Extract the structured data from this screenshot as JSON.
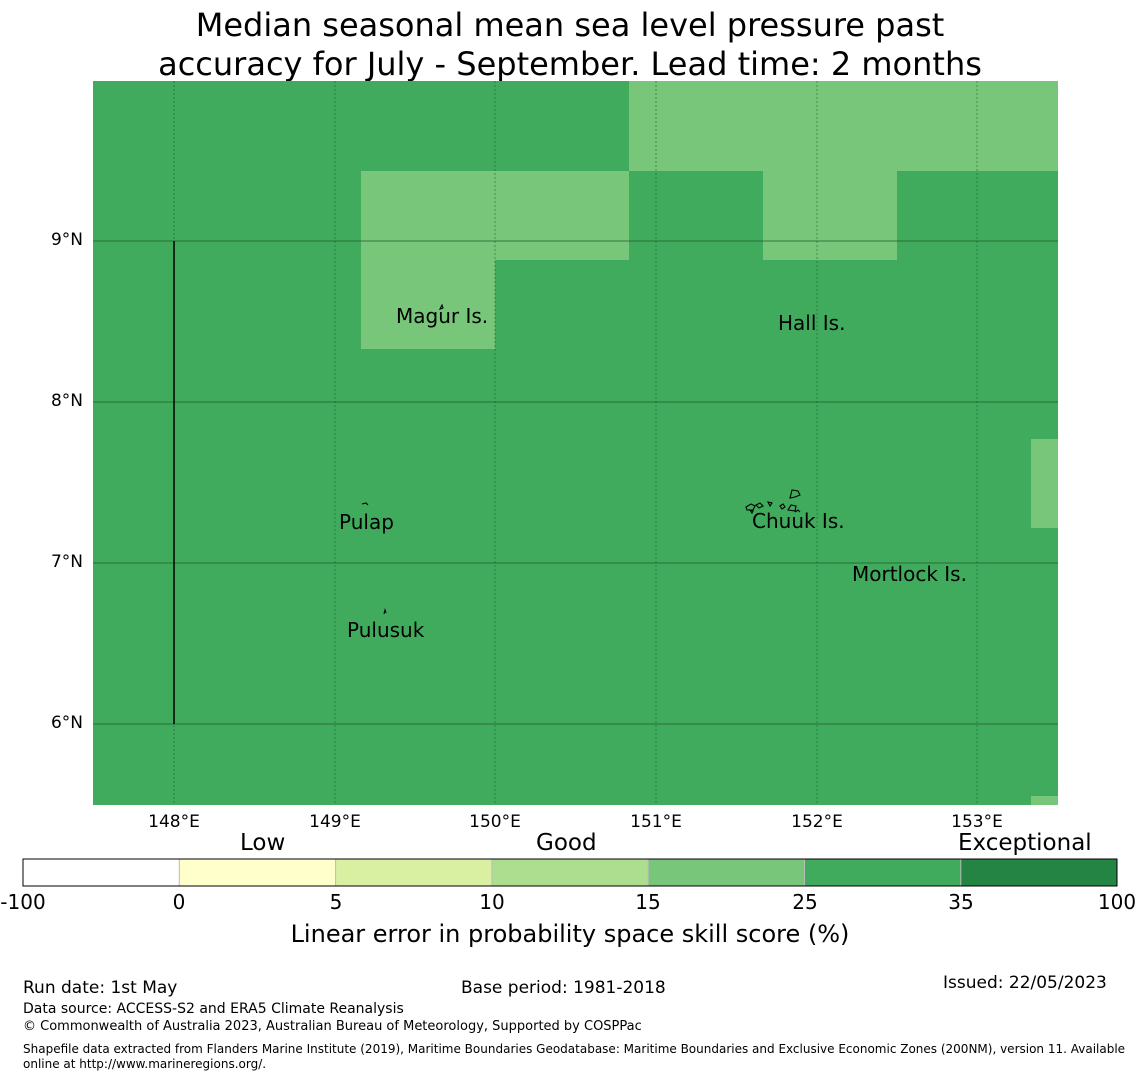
{
  "title": {
    "line1": "Median seasonal mean sea level pressure past",
    "line2": "accuracy for July - September. Lead time: 2 months"
  },
  "map": {
    "lat_labels": [
      "9°N",
      "8°N",
      "7°N",
      "6°N"
    ],
    "lon_labels": [
      "148°E",
      "149°E",
      "150°E",
      "151°E",
      "152°E",
      "153°E"
    ],
    "places": [
      "Magur Is.",
      "Hall Is.",
      "Pulap",
      "Chuuk Is.",
      "Mortlock Is.",
      "Pulusuk"
    ],
    "colors": {
      "good_25_35": "#41ab5d",
      "good_15_25": "#78c679",
      "grid": "#1e5a2e"
    }
  },
  "colorbar": {
    "categories": [
      "Low",
      "Good",
      "Exceptional"
    ],
    "ticks": [
      "-100",
      "0",
      "5",
      "10",
      "15",
      "25",
      "35",
      "100"
    ],
    "colors": [
      "#ffffff",
      "#ffffcc",
      "#d9f0a3",
      "#addd8e",
      "#78c679",
      "#41ab5d",
      "#238443"
    ],
    "label": "Linear error in probability space skill score (%)"
  },
  "footer": {
    "run_date": "Run date: 1st May",
    "base_period": "Base period: 1981-2018",
    "issued": "Issued: 22/05/2023",
    "data_source": "Data source: ACCESS-S2 and ERA5 Climate Reanalysis",
    "copyright": "© Commonwealth of Australia 2023, Australian Bureau of Meteorology, Supported by COSPPac",
    "shapefile_line1": "Shapefile data extracted from Flanders Marine Institute (2019), Maritime Boundaries Geodatabase: Maritime Boundaries and Exclusive Economic Zones (200NM), version 11. Available",
    "shapefile_line2": "online at http://www.marineregions.org/."
  }
}
